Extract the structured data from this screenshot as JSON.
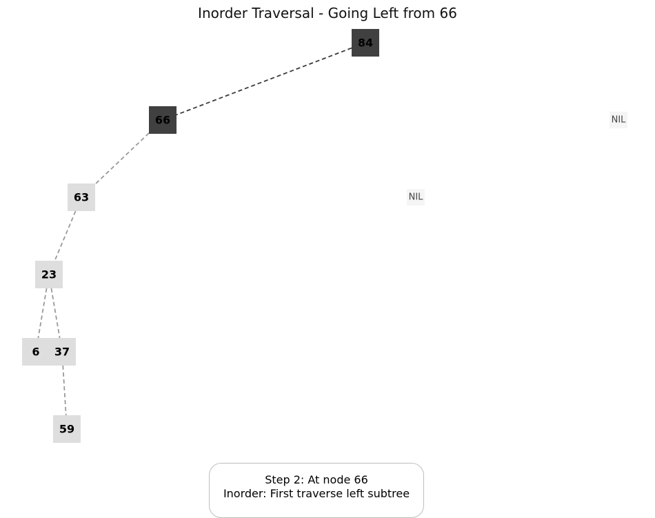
{
  "title": "Inorder Traversal - Going Left from 66",
  "colors": {
    "visited_fill": "#404040",
    "unvisited_fill": "#dedede",
    "nil_fill": "#f5f5f5",
    "active_edge": "#3a3a3a",
    "inactive_edge": "#999999"
  },
  "nodes": [
    {
      "id": "n84",
      "label": "84",
      "state": "visited"
    },
    {
      "id": "n66",
      "label": "66",
      "state": "visited"
    },
    {
      "id": "n63",
      "label": "63",
      "state": "unvisited"
    },
    {
      "id": "n23",
      "label": "23",
      "state": "unvisited"
    },
    {
      "id": "n6",
      "label": "6",
      "state": "unvisited"
    },
    {
      "id": "n37",
      "label": "37",
      "state": "unvisited"
    },
    {
      "id": "n59",
      "label": "59",
      "state": "unvisited"
    },
    {
      "id": "nil84",
      "label": "NIL",
      "state": "nil"
    },
    {
      "id": "nil66",
      "label": "NIL",
      "state": "nil"
    }
  ],
  "edges": [
    {
      "from": "n84",
      "to": "n66",
      "active": true
    },
    {
      "from": "n66",
      "to": "n63",
      "active": false
    },
    {
      "from": "n63",
      "to": "n23",
      "active": false
    },
    {
      "from": "n23",
      "to": "n6",
      "active": false
    },
    {
      "from": "n23",
      "to": "n37",
      "active": false
    },
    {
      "from": "n37",
      "to": "n59",
      "active": false
    }
  ],
  "caption": {
    "line1": "Step 2: At node 66",
    "line2": "Inorder: First traverse left subtree"
  }
}
